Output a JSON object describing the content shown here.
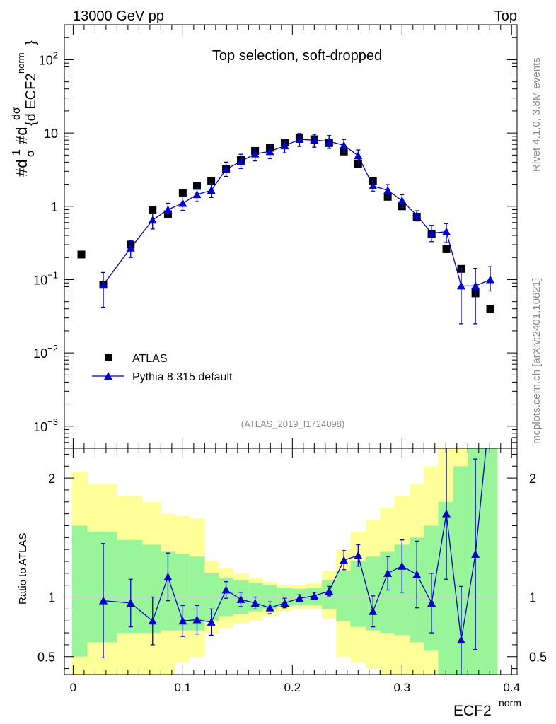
{
  "header": {
    "left": "13000 GeV pp",
    "right": "Top",
    "side_top": "Rivet 4.1.0,  3.8M events",
    "side_bottom": "mcplots.cern.ch [arXiv:2401.10621]"
  },
  "chart_data": {
    "type": "scatter",
    "title": "Top selection, soft-dropped",
    "analysis": "(ATLAS_2019_I1724098)",
    "xlabel_main": "ECF2",
    "xlabel_sup": "norm",
    "ylabel": "#dσ/#d{d ECF2^norm} (1/σ)",
    "ylabel_parts": {
      "a": "#d",
      "b": "1",
      "c": "σ",
      "d": "#d",
      "e": "dσ",
      "f": "{d ECF2",
      "g": "norm",
      "h": "}"
    },
    "ratio_ylabel": "Ratio to ATLAS",
    "xlim": [
      -0.008,
      0.405
    ],
    "ylim_main": [
      0.0005,
      300
    ],
    "ylim_ratio": [
      0.35,
      2.25
    ],
    "x_ticks": [
      0,
      0.1,
      0.2,
      0.3,
      0.4
    ],
    "x_tick_labels": [
      "0",
      "0.1",
      "0.2",
      "0.3",
      "0.4"
    ],
    "y_ticks_main": [
      {
        "mant": "10",
        "exp": "−3",
        "value": 0.001
      },
      {
        "mant": "10",
        "exp": "−2",
        "value": 0.01
      },
      {
        "mant": "10",
        "exp": "−1",
        "value": 0.1
      },
      {
        "mant": "1",
        "exp": "",
        "value": 1
      },
      {
        "mant": "10",
        "exp": "",
        "value": 10
      },
      {
        "mant": "10",
        "exp": "2",
        "value": 100
      }
    ],
    "y_ticks_ratio": [
      {
        "label": "0.5",
        "value": 0.5
      },
      {
        "label": "1",
        "value": 1
      },
      {
        "label": "2",
        "value": 2
      }
    ],
    "legend": {
      "position": "bottom-left",
      "data_label": "ATLAS",
      "mc_label": "Pythia 8.315 default"
    },
    "colors": {
      "mc": "#0000cc",
      "data": "#000000",
      "band_inner": "#99f599",
      "band_outer": "#ffff99",
      "refline": "#000000"
    },
    "series": [
      {
        "name": "ATLAS",
        "x": [
          0.0075,
          0.0275,
          0.0525,
          0.0725,
          0.0865,
          0.1,
          0.113,
          0.126,
          0.1395,
          0.153,
          0.166,
          0.1795,
          0.193,
          0.2065,
          0.22,
          0.2335,
          0.247,
          0.26,
          0.2735,
          0.287,
          0.3,
          0.3135,
          0.327,
          0.3405,
          0.354,
          0.367,
          0.3805
        ],
        "y": [
          0.22,
          0.085,
          0.3,
          0.88,
          0.78,
          1.5,
          1.9,
          2.2,
          3.2,
          4.3,
          5.7,
          6.3,
          7.4,
          8.5,
          8.2,
          7.3,
          5.6,
          3.8,
          2.2,
          1.35,
          1.0,
          0.72,
          0.42,
          0.26,
          0.14,
          0.065,
          0.04
        ]
      },
      {
        "name": "Pythia 8.315 default",
        "x": [
          0.0275,
          0.0525,
          0.0725,
          0.0865,
          0.1,
          0.113,
          0.126,
          0.1395,
          0.153,
          0.166,
          0.1795,
          0.193,
          0.2065,
          0.22,
          0.2335,
          0.247,
          0.26,
          0.2735,
          0.287,
          0.3,
          0.3135,
          0.327,
          0.3405,
          0.354,
          0.367,
          0.3805
        ],
        "y": [
          0.085,
          0.27,
          0.65,
          0.9,
          1.1,
          1.45,
          1.65,
          3.2,
          4.1,
          5.2,
          5.6,
          6.7,
          8.2,
          8.0,
          7.7,
          6.8,
          4.9,
          1.9,
          1.65,
          1.2,
          0.75,
          0.43,
          0.45,
          0.082,
          0.082,
          0.1
        ],
        "yerr_lo": [
          0.043,
          0.07,
          0.16,
          0.2,
          0.2,
          0.2,
          0.2,
          0.2,
          0.2,
          0.2,
          0.2,
          0.2,
          0.2,
          0.2,
          0.2,
          0.2,
          0.2,
          0.15,
          0.2,
          0.2,
          0.12,
          0.1,
          0.13,
          0.057,
          0.057,
          0.03
        ],
        "yerr_hi": [
          0.04,
          0.07,
          0.16,
          0.2,
          0.25,
          0.25,
          0.25,
          0.25,
          0.25,
          0.2,
          0.2,
          0.2,
          0.2,
          0.2,
          0.2,
          0.2,
          0.2,
          0.2,
          0.2,
          0.2,
          0.12,
          0.12,
          0.13,
          0.06,
          0.06,
          0.05
        ]
      }
    ],
    "ratio": {
      "x": [
        0.0275,
        0.0525,
        0.0725,
        0.0865,
        0.1,
        0.113,
        0.126,
        0.1395,
        0.153,
        0.166,
        0.1795,
        0.193,
        0.2065,
        0.22,
        0.2335,
        0.247,
        0.26,
        0.2735,
        0.287,
        0.3,
        0.3135,
        0.327,
        0.3405,
        0.354,
        0.367
      ],
      "y": [
        0.97,
        0.95,
        0.8,
        1.17,
        0.8,
        0.81,
        0.79,
        1.06,
        0.98,
        0.95,
        0.91,
        0.95,
        0.99,
        1.01,
        1.05,
        1.31,
        1.35,
        0.88,
        1.2,
        1.26,
        1.19,
        0.95,
        1.7,
        0.64,
        1.36
      ],
      "yerr": [
        0.48,
        0.2,
        0.2,
        0.2,
        0.13,
        0.12,
        0.11,
        0.07,
        0.06,
        0.05,
        0.05,
        0.04,
        0.03,
        0.03,
        0.04,
        0.08,
        0.09,
        0.13,
        0.14,
        0.22,
        0.28,
        0.25,
        0.55,
        0.45,
        0.8
      ],
      "continuation": {
        "x": [
          0.3805
        ],
        "y": [
          2.6
        ]
      },
      "band_edges": [
        -0.001,
        0.013,
        0.04,
        0.063,
        0.08,
        0.093,
        0.106,
        0.12,
        0.133,
        0.146,
        0.16,
        0.173,
        0.186,
        0.2,
        0.213,
        0.227,
        0.24,
        0.253,
        0.267,
        0.28,
        0.293,
        0.307,
        0.32,
        0.333,
        0.347,
        0.36,
        0.373,
        0.387
      ],
      "band_inner_lo": [
        0.5,
        0.62,
        0.7,
        0.7,
        0.72,
        0.72,
        0.72,
        0.8,
        0.84,
        0.86,
        0.88,
        0.9,
        0.92,
        0.93,
        0.93,
        0.9,
        0.8,
        0.75,
        0.72,
        0.7,
        0.68,
        0.62,
        0.55,
        0.35,
        0.35,
        0.35,
        0.35
      ],
      "band_inner_hi": [
        1.6,
        1.55,
        1.48,
        1.44,
        1.38,
        1.36,
        1.34,
        1.2,
        1.16,
        1.14,
        1.12,
        1.1,
        1.08,
        1.07,
        1.08,
        1.14,
        1.22,
        1.3,
        1.34,
        1.38,
        1.44,
        1.5,
        1.6,
        1.8,
        2.1,
        2.3,
        2.3
      ],
      "band_outer_lo": [
        0.35,
        0.35,
        0.35,
        0.35,
        0.35,
        0.45,
        0.5,
        0.7,
        0.74,
        0.78,
        0.8,
        0.84,
        0.88,
        0.9,
        0.9,
        0.82,
        0.5,
        0.45,
        0.4,
        0.35,
        0.35,
        0.35,
        0.35,
        0.35,
        0.35,
        0.35,
        0.35
      ],
      "band_outer_hi": [
        2.05,
        1.95,
        1.85,
        1.8,
        1.7,
        1.68,
        1.66,
        1.3,
        1.24,
        1.2,
        1.16,
        1.13,
        1.1,
        1.1,
        1.12,
        1.22,
        1.4,
        1.55,
        1.65,
        1.75,
        1.85,
        1.95,
        2.1,
        2.25,
        2.25,
        2.25,
        2.25
      ]
    }
  }
}
